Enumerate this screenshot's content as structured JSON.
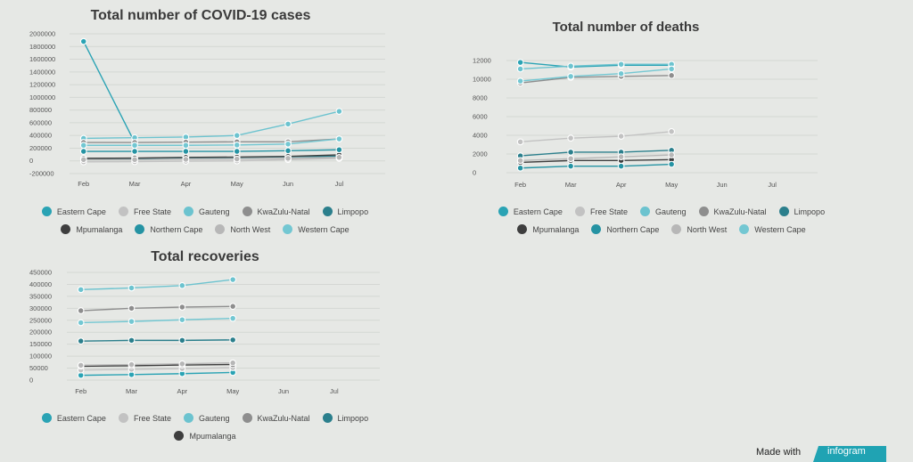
{
  "colors": {
    "Eastern Cape": "#2aa3b4",
    "Free State": "#c2c2c2",
    "Gauteng": "#6cc3cf",
    "KwaZulu-Natal": "#8e8e8e",
    "Limpopo": "#2b7f8c",
    "Mpumalanga": "#3e3e3e",
    "Northern Cape": "#2593a3",
    "North West": "#b7b7b7",
    "Western Cape": "#73c7d2"
  },
  "footer": {
    "made_with": "Made with",
    "brand": "infogram"
  },
  "chart_data": [
    {
      "id": "cases",
      "type": "line",
      "title": "Total number of COVID-19 cases",
      "categories": [
        "Feb",
        "Mar",
        "Apr",
        "May",
        "Jun",
        "Jul"
      ],
      "ylim": [
        -200000,
        2000000
      ],
      "yticks": [
        2000000,
        1800000,
        1600000,
        1400000,
        1200000,
        1000000,
        800000,
        600000,
        400000,
        200000,
        0,
        -200000
      ],
      "grid": true,
      "legend_position": "bottom",
      "series": [
        {
          "name": "Eastern Cape",
          "values": [
            1880000,
            290000,
            null,
            null,
            null,
            null
          ]
        },
        {
          "name": "Free State",
          "values": [
            -15000,
            -12000,
            -5000,
            0,
            20000,
            40000
          ]
        },
        {
          "name": "Gauteng",
          "values": [
            355000,
            365000,
            375000,
            400000,
            580000,
            780000
          ]
        },
        {
          "name": "KwaZulu-Natal",
          "values": [
            290000,
            290000,
            295000,
            300000,
            300000,
            345000
          ]
        },
        {
          "name": "Limpopo",
          "values": [
            30000,
            40000,
            50000,
            55000,
            65000,
            75000
          ]
        },
        {
          "name": "Mpumalanga",
          "values": [
            40000,
            45000,
            55000,
            60000,
            70000,
            95000
          ]
        },
        {
          "name": "Northern Cape",
          "values": [
            150000,
            150000,
            150000,
            150000,
            160000,
            175000
          ]
        },
        {
          "name": "North West",
          "values": [
            20000,
            20000,
            25000,
            30000,
            40000,
            55000
          ]
        },
        {
          "name": "Western Cape",
          "values": [
            245000,
            245000,
            245000,
            250000,
            265000,
            345000
          ]
        }
      ]
    },
    {
      "id": "deaths",
      "type": "line",
      "title": "Total number of deaths",
      "categories": [
        "Feb",
        "Mar",
        "Apr",
        "May",
        "Jun",
        "Jul"
      ],
      "ylim": [
        0,
        12000
      ],
      "yticks": [
        12000,
        10000,
        8000,
        6000,
        4000,
        2000,
        0
      ],
      "grid": true,
      "legend_position": "bottom",
      "series": [
        {
          "name": "Eastern Cape",
          "values": [
            11800,
            11300,
            11500,
            11500,
            null,
            null
          ]
        },
        {
          "name": "Free State",
          "values": [
            3300,
            3700,
            3900,
            4400,
            null,
            null
          ]
        },
        {
          "name": "Gauteng",
          "values": [
            11100,
            11400,
            11600,
            11600,
            null,
            null
          ]
        },
        {
          "name": "KwaZulu-Natal",
          "values": [
            9600,
            10200,
            10300,
            10400,
            null,
            null
          ]
        },
        {
          "name": "Limpopo",
          "values": [
            1800,
            2200,
            2200,
            2400,
            null,
            null
          ]
        },
        {
          "name": "Mpumalanga",
          "values": [
            1100,
            1300,
            1300,
            1400,
            null,
            null
          ]
        },
        {
          "name": "Northern Cape",
          "values": [
            500,
            700,
            700,
            900,
            null,
            null
          ]
        },
        {
          "name": "North West",
          "values": [
            1300,
            1500,
            1700,
            1900,
            null,
            null
          ]
        },
        {
          "name": "Western Cape",
          "values": [
            9800,
            10300,
            10600,
            11100,
            null,
            null
          ]
        }
      ]
    },
    {
      "id": "recoveries",
      "type": "line",
      "title": "Total recoveries",
      "categories": [
        "Feb",
        "Mar",
        "Apr",
        "May",
        "Jun",
        "Jul"
      ],
      "ylim": [
        0,
        450000
      ],
      "yticks": [
        450000,
        400000,
        350000,
        300000,
        250000,
        200000,
        150000,
        100000,
        50000,
        0
      ],
      "grid": true,
      "legend_position": "bottom",
      "series": [
        {
          "name": "Eastern Cape",
          "values": [
            20000,
            23000,
            27000,
            32000,
            null,
            null
          ]
        },
        {
          "name": "Free State",
          "values": [
            42000,
            45000,
            48000,
            52000,
            null,
            null
          ]
        },
        {
          "name": "Gauteng",
          "values": [
            378000,
            385000,
            395000,
            420000,
            null,
            null
          ]
        },
        {
          "name": "KwaZulu-Natal",
          "values": [
            290000,
            300000,
            305000,
            308000,
            null,
            null
          ]
        },
        {
          "name": "Limpopo",
          "values": [
            163000,
            166000,
            166000,
            168000,
            null,
            null
          ]
        },
        {
          "name": "Mpumalanga",
          "values": [
            58000,
            60000,
            63000,
            65000,
            null,
            null
          ]
        },
        {
          "name": "Northern Cape",
          "values": [
            null,
            null,
            null,
            null,
            null,
            null
          ]
        },
        {
          "name": "North West",
          "values": [
            62000,
            65000,
            68000,
            72000,
            null,
            null
          ]
        },
        {
          "name": "Western Cape",
          "values": [
            240000,
            245000,
            252000,
            258000,
            null,
            null
          ]
        }
      ]
    }
  ]
}
